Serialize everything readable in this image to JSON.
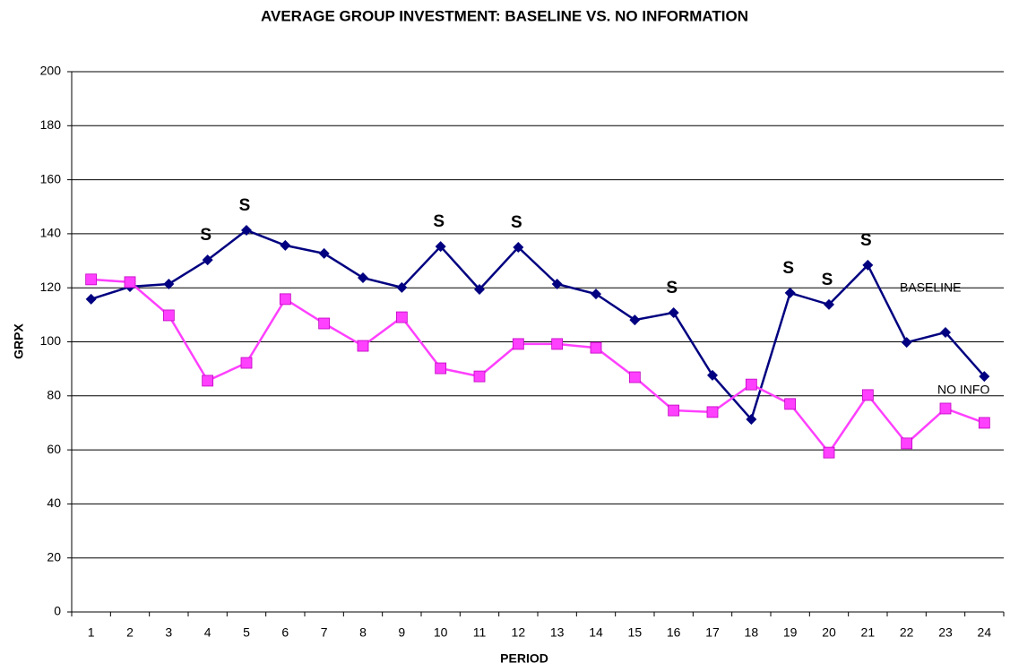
{
  "chart_data": {
    "type": "line",
    "title": "AVERAGE GROUP INVESTMENT: BASELINE VS. NO INFORMATION",
    "x_label": "PERIOD",
    "y_label": "GRPX",
    "categories": [
      "1",
      "2",
      "3",
      "4",
      "5",
      "6",
      "7",
      "8",
      "9",
      "10",
      "11",
      "12",
      "13",
      "14",
      "15",
      "16",
      "17",
      "18",
      "19",
      "20",
      "21",
      "22",
      "23",
      "24"
    ],
    "series": [
      {
        "name": "BASELINE",
        "color": "#000080",
        "marker": "diamond",
        "values": [
          115.8,
          120.4,
          121.4,
          130.3,
          141.3,
          135.7,
          132.7,
          123.7,
          120.1,
          135.3,
          119.4,
          135.0,
          121.4,
          117.7,
          108.1,
          110.8,
          87.6,
          71.3,
          118.1,
          113.8,
          128.4,
          99.8,
          103.5,
          87.2
        ]
      },
      {
        "name": "NO INFO",
        "color": "#ff40ff",
        "marker": "square",
        "values": [
          123.1,
          122.1,
          109.8,
          85.6,
          92.2,
          115.8,
          106.8,
          98.5,
          109.1,
          90.2,
          87.2,
          99.2,
          99.2,
          97.8,
          86.9,
          74.6,
          74.0,
          84.2,
          77.0,
          59.0,
          80.3,
          62.4,
          75.3,
          70.0
        ]
      }
    ],
    "annotations": [
      {
        "text": "S",
        "x": "4"
      },
      {
        "text": "S",
        "x": "5"
      },
      {
        "text": "S",
        "x": "10"
      },
      {
        "text": "S",
        "x": "12"
      },
      {
        "text": "S",
        "x": "16"
      },
      {
        "text": "S",
        "x": "19"
      },
      {
        "text": "S",
        "x": "20"
      },
      {
        "text": "S",
        "x": "21"
      }
    ],
    "ylim": [
      0,
      200
    ],
    "yticks": [
      0,
      20,
      40,
      60,
      80,
      100,
      120,
      140,
      160,
      180,
      200
    ],
    "grid": true
  }
}
